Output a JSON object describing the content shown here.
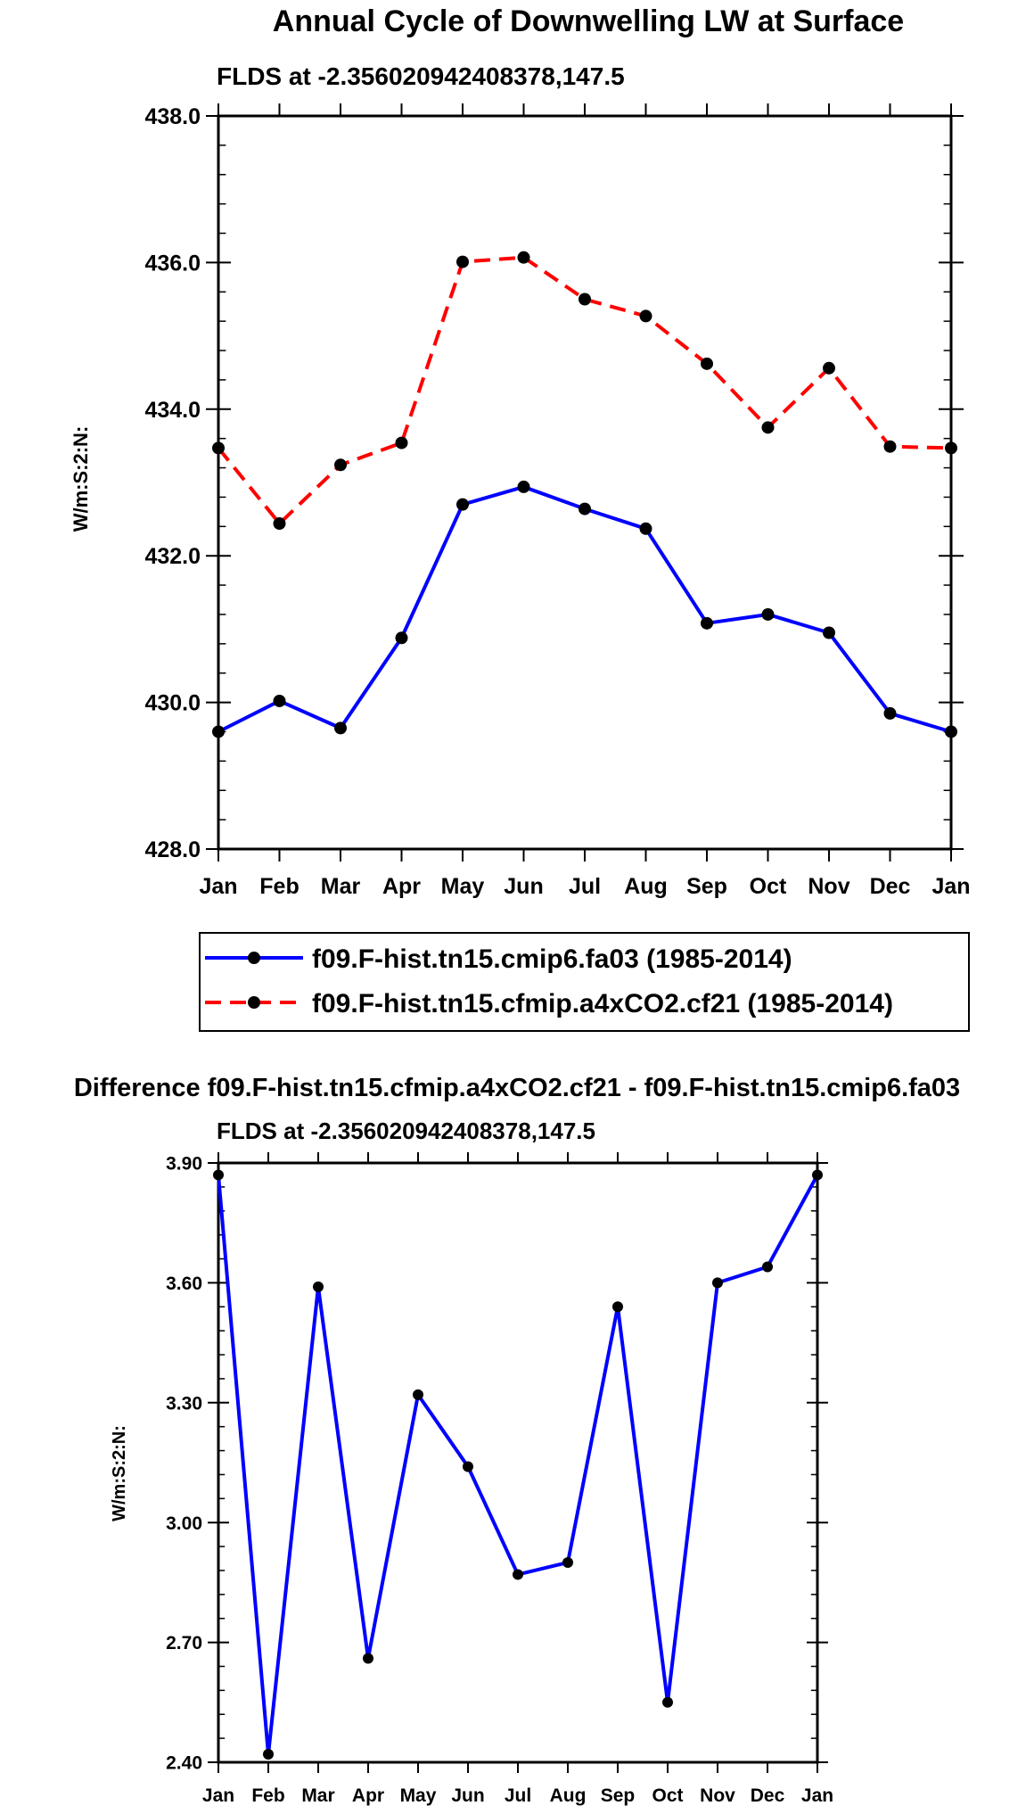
{
  "chart_data": [
    {
      "type": "line",
      "title": "Annual Cycle of Downwelling LW at Surface",
      "subtitle": "FLDS at -2.356020942408378,147.5",
      "ylabel": "W/m:S:2:N:",
      "xlabel": "",
      "categories": [
        "Jan",
        "Feb",
        "Mar",
        "Apr",
        "May",
        "Jun",
        "Jul",
        "Aug",
        "Sep",
        "Oct",
        "Nov",
        "Dec",
        "Jan"
      ],
      "ylim": [
        428.0,
        438.0
      ],
      "yticks": [
        "428.0",
        "430.0",
        "432.0",
        "434.0",
        "436.0",
        "438.0"
      ],
      "series": [
        {
          "name": "f09.F-hist.tn15.cmip6.fa03 (1985-2014)",
          "color": "#0000ff",
          "dash": "solid",
          "values": [
            429.6,
            430.02,
            429.65,
            430.88,
            432.7,
            432.94,
            432.64,
            432.37,
            431.08,
            431.2,
            430.95,
            429.85,
            429.6
          ]
        },
        {
          "name": "f09.F-hist.tn15.cfmip.a4xCO2.cf21 (1985-2014)",
          "color": "#ff0000",
          "dash": "dashed",
          "values": [
            433.47,
            432.44,
            433.24,
            433.54,
            436.01,
            436.07,
            435.5,
            435.27,
            434.62,
            433.75,
            434.56,
            433.49,
            433.47
          ]
        }
      ]
    },
    {
      "type": "line",
      "title": "Difference f09.F-hist.tn15.cfmip.a4xCO2.cf21 - f09.F-hist.tn15.cmip6.fa03",
      "subtitle": "FLDS at -2.356020942408378,147.5",
      "ylabel": "W/m:S:2:N:",
      "xlabel": "",
      "categories": [
        "Jan",
        "Feb",
        "Mar",
        "Apr",
        "May",
        "Jun",
        "Jul",
        "Aug",
        "Sep",
        "Oct",
        "Nov",
        "Dec",
        "Jan"
      ],
      "ylim": [
        2.4,
        3.9
      ],
      "yticks": [
        "2.40",
        "2.70",
        "3.00",
        "3.30",
        "3.60",
        "3.90"
      ],
      "series": [
        {
          "name": "Difference",
          "color": "#0000ff",
          "dash": "solid",
          "values": [
            3.87,
            2.42,
            3.59,
            2.66,
            3.32,
            3.14,
            2.87,
            2.9,
            3.54,
            2.55,
            3.6,
            3.64,
            3.87
          ]
        }
      ]
    }
  ]
}
